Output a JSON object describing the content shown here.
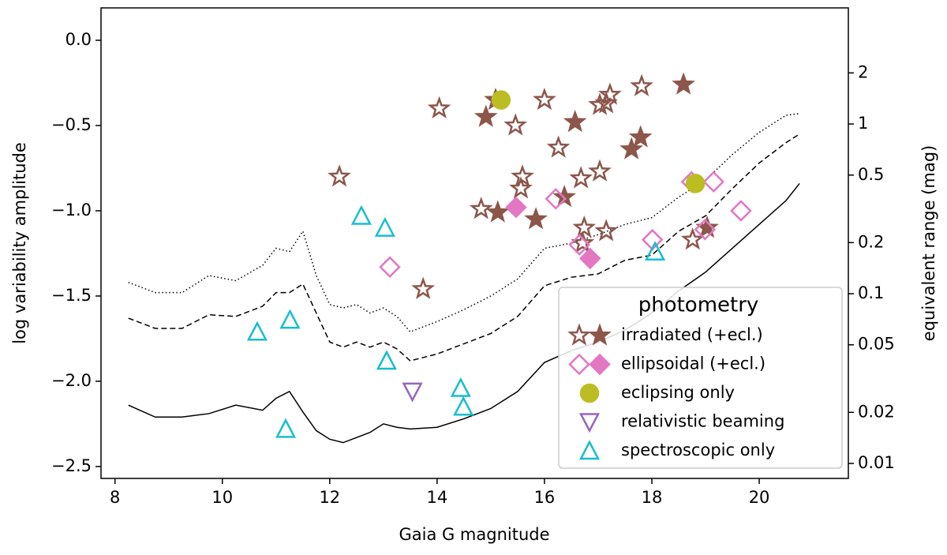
{
  "chart_data": {
    "type": "scatter",
    "xlabel": "Gaia G magnitude",
    "ylabel": "log variability amplitude",
    "y2label": "equivalent range (mag)",
    "xlim": [
      7.74,
      21.66
    ],
    "ylim": [
      -2.57,
      0.19
    ],
    "y2lim": [
      0.00816,
      4.83
    ],
    "y2scale": "log",
    "xticks": [
      8,
      10,
      12,
      14,
      16,
      18,
      20
    ],
    "yticks": [
      {
        "value": -2.5,
        "label": "−2.5"
      },
      {
        "value": -2.0,
        "label": "−2.0"
      },
      {
        "value": -1.5,
        "label": "−1.5"
      },
      {
        "value": -1.0,
        "label": "−1.0"
      },
      {
        "value": -0.5,
        "label": "−0.5"
      },
      {
        "value": 0,
        "label": "0.0"
      }
    ],
    "y2ticks": [
      0.01,
      0.02,
      0.05,
      0.1,
      0.2,
      0.5,
      1,
      2
    ],
    "legend_title": "photometry",
    "legend": "lower right",
    "line_x": [
      8.25,
      8.75,
      9.25,
      9.75,
      10.25,
      10.75,
      11.0,
      11.25,
      11.5,
      11.75,
      12.0,
      12.25,
      12.5,
      12.75,
      13.0,
      13.25,
      13.5,
      14.0,
      14.5,
      15.0,
      15.5,
      16.0,
      16.5,
      17.0,
      17.5,
      18.0,
      18.5,
      19.0,
      19.5,
      20.0,
      20.5,
      20.75
    ],
    "lines": [
      {
        "style": "solid",
        "color": "#000000",
        "values": [
          -2.14,
          -2.21,
          -2.21,
          -2.19,
          -2.14,
          -2.17,
          -2.1,
          -2.06,
          -2.18,
          -2.29,
          -2.34,
          -2.36,
          -2.33,
          -2.3,
          -2.25,
          -2.27,
          -2.28,
          -2.27,
          -2.22,
          -2.16,
          -2.06,
          -1.89,
          -1.82,
          -1.77,
          -1.7,
          -1.6,
          -1.47,
          -1.36,
          -1.22,
          -1.08,
          -0.94,
          -0.84
        ]
      },
      {
        "style": "dashed",
        "color": "#000000",
        "values": [
          -1.63,
          -1.69,
          -1.69,
          -1.61,
          -1.62,
          -1.56,
          -1.48,
          -1.48,
          -1.43,
          -1.6,
          -1.77,
          -1.8,
          -1.77,
          -1.8,
          -1.77,
          -1.81,
          -1.88,
          -1.84,
          -1.78,
          -1.72,
          -1.62,
          -1.44,
          -1.39,
          -1.37,
          -1.29,
          -1.26,
          -1.12,
          -1.03,
          -0.87,
          -0.72,
          -0.6,
          -0.55
        ]
      },
      {
        "style": "dotted",
        "color": "#000000",
        "values": [
          -1.42,
          -1.48,
          -1.48,
          -1.38,
          -1.41,
          -1.32,
          -1.22,
          -1.24,
          -1.12,
          -1.38,
          -1.55,
          -1.57,
          -1.55,
          -1.6,
          -1.57,
          -1.62,
          -1.71,
          -1.65,
          -1.58,
          -1.5,
          -1.4,
          -1.22,
          -1.19,
          -1.14,
          -1.08,
          -1.04,
          -0.92,
          -0.82,
          -0.67,
          -0.54,
          -0.44,
          -0.43
        ]
      }
    ],
    "series": [
      {
        "name": "irradiated (+ecl.)",
        "marker": "star",
        "color": "#8c564b",
        "x": [
          14.04,
          12.18,
          13.74,
          14.82,
          15.46,
          16.0,
          15.59,
          15.56,
          16.26,
          16.68,
          17.03,
          17.22,
          17.15,
          17.03,
          17.81,
          16.74,
          16.71,
          17.15,
          18.76
        ],
        "values": [
          -0.4,
          -0.8,
          -1.46,
          -0.99,
          -0.5,
          -0.35,
          -0.8,
          -0.87,
          -0.63,
          -0.81,
          -0.77,
          -0.32,
          -0.37,
          -0.38,
          -0.27,
          -1.1,
          -1.19,
          -1.12,
          -1.17
        ],
        "ecl_x": [
          15.09,
          14.91,
          15.13,
          16.57,
          15.84,
          16.37,
          17.62,
          17.79,
          18.59,
          19.03
        ],
        "ecl_values": [
          -0.35,
          -0.45,
          -1.01,
          -0.48,
          -1.05,
          -0.92,
          -0.64,
          -0.57,
          -0.26,
          -1.1
        ]
      },
      {
        "name": "ellipsoidal (+ecl.)",
        "marker": "diamond",
        "color": "#e377c2",
        "x": [
          13.12,
          16.21,
          16.65,
          18.01,
          18.74,
          19.15,
          19.66,
          18.99
        ],
        "values": [
          -1.33,
          -0.93,
          -1.2,
          -1.17,
          -0.83,
          -0.83,
          -1.0,
          -1.11
        ],
        "ecl_x": [
          15.47,
          16.85
        ],
        "ecl_values": [
          -0.98,
          -1.28
        ]
      },
      {
        "name": "eclipsing only",
        "marker": "circle",
        "color": "#bcbd22",
        "filled": true,
        "x": [
          15.19,
          18.81
        ],
        "values": [
          -0.35,
          -0.84
        ]
      },
      {
        "name": "relativistic beaming",
        "marker": "triangle-down",
        "color": "#9467bd",
        "x": [
          13.54
        ],
        "values": [
          -2.06
        ]
      },
      {
        "name": "spectroscopic only",
        "marker": "triangle-up",
        "color": "#17becf",
        "x": [
          12.59,
          13.03,
          10.65,
          11.26,
          13.06,
          11.18,
          14.44,
          14.49,
          18.06
        ],
        "values": [
          -1.03,
          -1.1,
          -1.71,
          -1.64,
          -1.88,
          -2.28,
          -2.04,
          -2.15,
          -1.24
        ]
      }
    ]
  }
}
